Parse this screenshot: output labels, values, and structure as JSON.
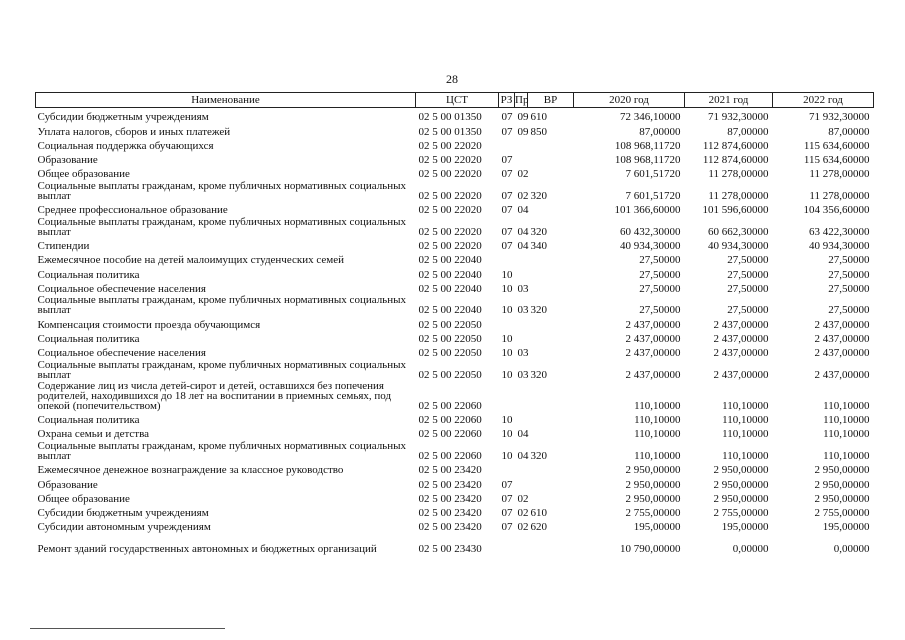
{
  "page_number": "28",
  "table": {
    "headers": [
      "Наименование",
      "ЦСТ",
      "РЗ",
      "Пр",
      "ВР",
      "2020 год",
      "2021 год",
      "2022 год"
    ],
    "rows": [
      {
        "name": "Субсидии бюджетным учреждениям",
        "cst": "02 5 00 01350",
        "rz": "07",
        "pr": "09",
        "vr": "610",
        "y2020": "72 346,10000",
        "y2021": "71 932,30000",
        "y2022": "71 932,30000",
        "lines": 1
      },
      {
        "name": "Уплата налогов, сборов и иных платежей",
        "cst": "02 5 00 01350",
        "rz": "07",
        "pr": "09",
        "vr": "850",
        "y2020": "87,00000",
        "y2021": "87,00000",
        "y2022": "87,00000",
        "lines": 1
      },
      {
        "name": "Социальная поддержка обучающихся",
        "cst": "02 5 00 22020",
        "rz": "",
        "pr": "",
        "vr": "",
        "y2020": "108 968,11720",
        "y2021": "112 874,60000",
        "y2022": "115 634,60000",
        "lines": 1
      },
      {
        "name": "Образование",
        "cst": "02 5 00 22020",
        "rz": "07",
        "pr": "",
        "vr": "",
        "y2020": "108 968,11720",
        "y2021": "112 874,60000",
        "y2022": "115 634,60000",
        "lines": 1
      },
      {
        "name": "Общее образование",
        "cst": "02 5 00 22020",
        "rz": "07",
        "pr": "02",
        "vr": "",
        "y2020": "7 601,51720",
        "y2021": "11 278,00000",
        "y2022": "11 278,00000",
        "lines": 1
      },
      {
        "name": "Социальные выплаты гражданам, кроме публичных нормативных социальных выплат",
        "cst": "02 5 00 22020",
        "rz": "07",
        "pr": "02",
        "vr": "320",
        "y2020": "7 601,51720",
        "y2021": "11 278,00000",
        "y2022": "11 278,00000",
        "lines": 2
      },
      {
        "name": "Среднее профессиональное образование",
        "cst": "02 5 00 22020",
        "rz": "07",
        "pr": "04",
        "vr": "",
        "y2020": "101 366,60000",
        "y2021": "101 596,60000",
        "y2022": "104 356,60000",
        "lines": 1
      },
      {
        "name": "Социальные выплаты гражданам, кроме публичных нормативных социальных выплат",
        "cst": "02 5 00 22020",
        "rz": "07",
        "pr": "04",
        "vr": "320",
        "y2020": "60 432,30000",
        "y2021": "60 662,30000",
        "y2022": "63 422,30000",
        "lines": 2
      },
      {
        "name": "Стипендии",
        "cst": "02 5 00 22020",
        "rz": "07",
        "pr": "04",
        "vr": "340",
        "y2020": "40 934,30000",
        "y2021": "40 934,30000",
        "y2022": "40 934,30000",
        "lines": 1
      },
      {
        "name": "Ежемесячное пособие на детей малоимущих студенческих семей",
        "cst": "02 5 00 22040",
        "rz": "",
        "pr": "",
        "vr": "",
        "y2020": "27,50000",
        "y2021": "27,50000",
        "y2022": "27,50000",
        "lines": 1
      },
      {
        "name": "Социальная политика",
        "cst": "02 5 00 22040",
        "rz": "10",
        "pr": "",
        "vr": "",
        "y2020": "27,50000",
        "y2021": "27,50000",
        "y2022": "27,50000",
        "lines": 1
      },
      {
        "name": "Социальное обеспечение населения",
        "cst": "02 5 00 22040",
        "rz": "10",
        "pr": "03",
        "vr": "",
        "y2020": "27,50000",
        "y2021": "27,50000",
        "y2022": "27,50000",
        "lines": 1
      },
      {
        "name": "Социальные выплаты гражданам, кроме публичных нормативных социальных выплат",
        "cst": "02 5 00 22040",
        "rz": "10",
        "pr": "03",
        "vr": "320",
        "y2020": "27,50000",
        "y2021": "27,50000",
        "y2022": "27,50000",
        "lines": 2
      },
      {
        "name": "Компенсация стоимости проезда обучающимся",
        "cst": "02 5 00 22050",
        "rz": "",
        "pr": "",
        "vr": "",
        "y2020": "2 437,00000",
        "y2021": "2 437,00000",
        "y2022": "2 437,00000",
        "lines": 1
      },
      {
        "name": "Социальная политика",
        "cst": "02 5 00 22050",
        "rz": "10",
        "pr": "",
        "vr": "",
        "y2020": "2 437,00000",
        "y2021": "2 437,00000",
        "y2022": "2 437,00000",
        "lines": 1
      },
      {
        "name": "Социальное обеспечение населения",
        "cst": "02 5 00 22050",
        "rz": "10",
        "pr": "03",
        "vr": "",
        "y2020": "2 437,00000",
        "y2021": "2 437,00000",
        "y2022": "2 437,00000",
        "lines": 1
      },
      {
        "name": "Социальные выплаты гражданам, кроме публичных нормативных социальных выплат",
        "cst": "02 5 00 22050",
        "rz": "10",
        "pr": "03",
        "vr": "320",
        "y2020": "2 437,00000",
        "y2021": "2 437,00000",
        "y2022": "2 437,00000",
        "lines": 2
      },
      {
        "name": "Содержание лиц из числа детей-сирот и детей, оставшихся без попечения родителей, находившихся до 18 лет на воспитании в приемных семьях, под опекой (попечительством)",
        "cst": "02 5 00 22060",
        "rz": "",
        "pr": "",
        "vr": "",
        "y2020": "110,10000",
        "y2021": "110,10000",
        "y2022": "110,10000",
        "lines": 3
      },
      {
        "name": "Социальная политика",
        "cst": "02 5 00 22060",
        "rz": "10",
        "pr": "",
        "vr": "",
        "y2020": "110,10000",
        "y2021": "110,10000",
        "y2022": "110,10000",
        "lines": 1
      },
      {
        "name": "Охрана семьи и детства",
        "cst": "02 5 00 22060",
        "rz": "10",
        "pr": "04",
        "vr": "",
        "y2020": "110,10000",
        "y2021": "110,10000",
        "y2022": "110,10000",
        "lines": 1
      },
      {
        "name": "Социальные выплаты гражданам, кроме публичных нормативных социальных выплат",
        "cst": "02 5 00 22060",
        "rz": "10",
        "pr": "04",
        "vr": "320",
        "y2020": "110,10000",
        "y2021": "110,10000",
        "y2022": "110,10000",
        "lines": 2
      },
      {
        "name": "Ежемесячное денежное вознаграждение за классное руководство",
        "cst": "02 5 00 23420",
        "rz": "",
        "pr": "",
        "vr": "",
        "y2020": "2 950,00000",
        "y2021": "2 950,00000",
        "y2022": "2 950,00000",
        "lines": 1
      },
      {
        "name": "Образование",
        "cst": "02 5 00 23420",
        "rz": "07",
        "pr": "",
        "vr": "",
        "y2020": "2 950,00000",
        "y2021": "2 950,00000",
        "y2022": "2 950,00000",
        "lines": 1
      },
      {
        "name": "Общее образование",
        "cst": "02 5 00 23420",
        "rz": "07",
        "pr": "02",
        "vr": "",
        "y2020": "2 950,00000",
        "y2021": "2 950,00000",
        "y2022": "2 950,00000",
        "lines": 1
      },
      {
        "name": "Субсидии бюджетным учреждениям",
        "cst": "02 5 00 23420",
        "rz": "07",
        "pr": "02",
        "vr": "610",
        "y2020": "2 755,00000",
        "y2021": "2 755,00000",
        "y2022": "2 755,00000",
        "lines": 1
      },
      {
        "name": "Субсидии автономным учреждениям",
        "cst": "02 5 00 23420",
        "rz": "07",
        "pr": "02",
        "vr": "620",
        "y2020": "195,00000",
        "y2021": "195,00000",
        "y2022": "195,00000",
        "lines": 1
      },
      {
        "name": "Ремонт зданий государственных автономных и бюджетных организаций",
        "cst": "02 5 00 23430",
        "rz": "",
        "pr": "",
        "vr": "",
        "y2020": "10 790,00000",
        "y2021": "0,00000",
        "y2022": "0,00000",
        "lines": 2
      }
    ]
  }
}
